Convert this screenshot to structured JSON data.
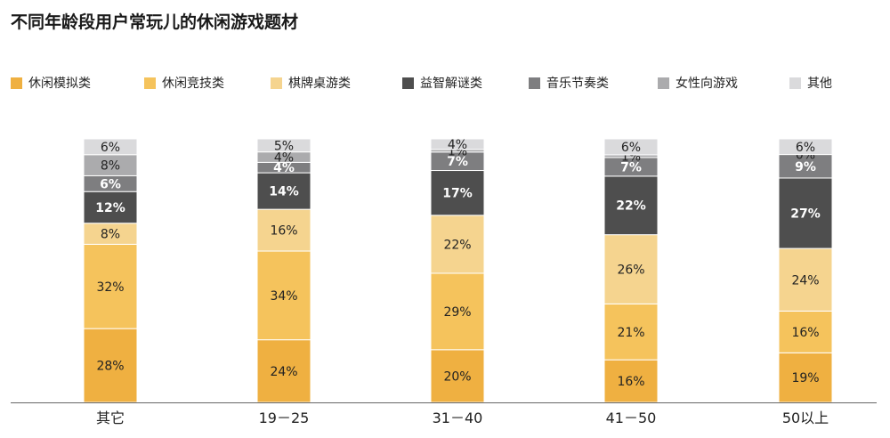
{
  "title": "不同年龄段用户常玩儿的休闲游戏题材",
  "chart_data": {
    "type": "bar",
    "stacked": true,
    "title": "不同年龄段用户常玩儿的休闲游戏题材",
    "categories": [
      "其它",
      "19－25",
      "31－40",
      "41－50",
      "50以上"
    ],
    "unit": "%",
    "ylim": [
      0,
      100
    ],
    "grid": false,
    "legend_position": "top",
    "series": [
      {
        "name": "休闲模拟类",
        "color": "#EFB041",
        "label_color": "#222222",
        "values": [
          28,
          24,
          20,
          16,
          19
        ]
      },
      {
        "name": "休闲竞技类",
        "color": "#F5C35C",
        "label_color": "#222222",
        "values": [
          32,
          34,
          29,
          21,
          16
        ]
      },
      {
        "name": "棋牌桌游类",
        "color": "#F5D48F",
        "label_color": "#222222",
        "values": [
          8,
          16,
          22,
          26,
          24
        ]
      },
      {
        "name": "益智解谜类",
        "color": "#4E4E4E",
        "label_color": "#ffffff",
        "values": [
          12,
          14,
          17,
          22,
          27
        ]
      },
      {
        "name": "音乐节奏类",
        "color": "#7E7E80",
        "label_color": "#ffffff",
        "values": [
          6,
          4,
          7,
          7,
          9
        ]
      },
      {
        "name": "女性向游戏",
        "color": "#ABABAD",
        "label_color": "#222222",
        "values": [
          8,
          4,
          1,
          1,
          0
        ]
      },
      {
        "name": "其他",
        "color": "#DADADC",
        "label_color": "#222222",
        "values": [
          6,
          5,
          4,
          6,
          6
        ]
      }
    ]
  }
}
